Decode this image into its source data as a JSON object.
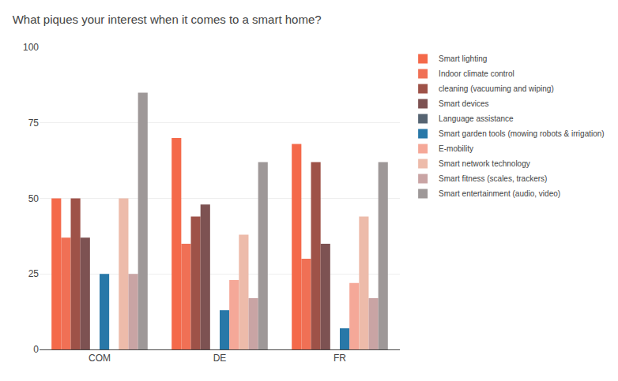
{
  "chart_data": {
    "type": "bar",
    "title": "What piques your interest when it comes to a smart home?",
    "categories": [
      "COM",
      "DE",
      "FR"
    ],
    "series": [
      {
        "name": "Smart lighting",
        "color": "#f4694a",
        "values": [
          50,
          70,
          68
        ]
      },
      {
        "name": "Indoor climate control",
        "color": "#f07055",
        "values": [
          37,
          35,
          30
        ]
      },
      {
        "name": "cleaning (vacuuming and wiping)",
        "color": "#9e5248",
        "values": [
          50,
          44,
          62
        ]
      },
      {
        "name": "Smart devices",
        "color": "#7d5252",
        "values": [
          37,
          48,
          35
        ]
      },
      {
        "name": "Language assistance",
        "color": "#566472",
        "values": [
          0,
          0,
          0
        ]
      },
      {
        "name": "Smart garden tools (mowing robots & irrigation)",
        "color": "#2878a8",
        "values": [
          25,
          13,
          7
        ]
      },
      {
        "name": "E-mobility",
        "color": "#f5a898",
        "values": [
          0,
          23,
          22
        ]
      },
      {
        "name": "Smart network technology",
        "color": "#edbbaa",
        "values": [
          50,
          38,
          44
        ]
      },
      {
        "name": "Smart fitness (scales, trackers)",
        "color": "#c9a4a4",
        "values": [
          25,
          17,
          17
        ]
      },
      {
        "name": "Smart entertainment (audio, video)",
        "color": "#9e9898",
        "values": [
          85,
          62,
          62
        ]
      }
    ],
    "ylim": [
      0,
      100
    ],
    "yticks": [
      0,
      25,
      50,
      75,
      100
    ],
    "grid": true,
    "legend": "right"
  }
}
